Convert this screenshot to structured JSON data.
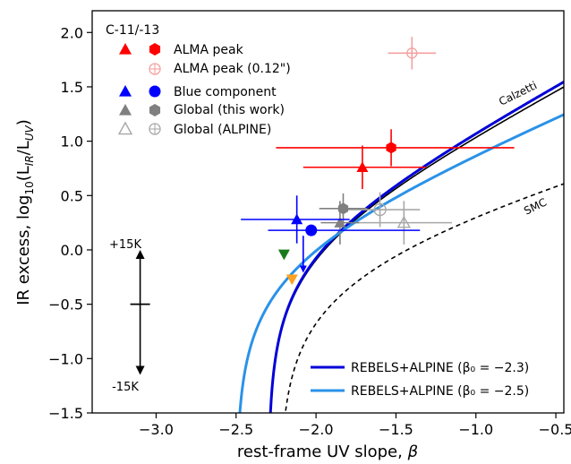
{
  "chart_data": {
    "type": "scatter",
    "xlabel_text": "rest-frame UV slope, ",
    "xlabel_sym": "β",
    "ylabel_pre": "IR excess, log",
    "ylabel_sub1": "10",
    "ylabel_mid1": "(L",
    "ylabel_sub2": "IR",
    "ylabel_mid2": "/L",
    "ylabel_sub3": "UV",
    "ylabel_post": ")",
    "xlim": [
      -3.4,
      -0.45
    ],
    "ylim": [
      -1.5,
      2.2
    ],
    "xticks": [
      -3.0,
      -2.5,
      -2.0,
      -1.5,
      -1.0,
      -0.5
    ],
    "xtick_labels": [
      "−3.0",
      "−2.5",
      "−2.0",
      "−1.5",
      "−1.0",
      "−0.5"
    ],
    "yticks": [
      -1.5,
      -1.0,
      -0.5,
      0.0,
      0.5,
      1.0,
      1.5,
      2.0
    ],
    "ytick_labels": [
      "−1.5",
      "−1.0",
      "−0.5",
      "0.0",
      "0.5",
      "1.0",
      "1.5",
      "2.0"
    ],
    "legend_title": "C-11/-13",
    "legend": [
      {
        "label": "ALMA peak",
        "color": "#ff0000",
        "style": "filled"
      },
      {
        "label": "ALMA peak (0.12\")",
        "color": "#ff0000",
        "style": "faded-open"
      },
      {
        "label": "Blue component",
        "color": "#0000ff",
        "style": "filled"
      },
      {
        "label": "Global (this work)",
        "color": "#808080",
        "style": "filled"
      },
      {
        "label": "Global (ALPINE)",
        "color": "#a0a0a0",
        "style": "open"
      }
    ],
    "legend2": [
      {
        "label": "REBELS+ALPINE (β₀ = −2.3)",
        "color": "#0000d8"
      },
      {
        "label": "REBELS+ALPINE (β₀ = −2.5)",
        "color": "#2a92e8"
      }
    ],
    "curve_labels": {
      "calzetti": "Calzetti",
      "smc": "SMC"
    },
    "arrow_labels": {
      "top": "+15K",
      "bottom": "-15K"
    },
    "arrow_anchor": {
      "x": -3.1,
      "y": -0.5,
      "y_top": 0.0,
      "y_bottom": -1.15
    },
    "curves": [
      {
        "id": "calzetti",
        "color": "#000000",
        "width": 1.6,
        "dash": "",
        "A": 1.99,
        "b0": -2.3,
        "c": 1.1
      },
      {
        "id": "smc",
        "color": "#000000",
        "width": 1.6,
        "dash": "5,4",
        "A": 1.1,
        "b0": -2.23,
        "c": 0.8
      },
      {
        "id": "rebels-23",
        "color": "#0000d8",
        "width": 3,
        "dash": "",
        "A": 2.05,
        "b0": -2.3,
        "c": 1.1
      },
      {
        "id": "rebels-25",
        "color": "#2a92e8",
        "width": 3,
        "dash": "",
        "A": 1.6,
        "b0": -2.5,
        "c": 0.9
      }
    ],
    "points": [
      {
        "name": "global-alpine-circle",
        "x": -1.6,
        "y": 0.37,
        "xerr": [
          0.25,
          0.25
        ],
        "yerr": [
          0.16,
          0.16
        ],
        "marker": "circle-open",
        "color": "#a8a8a8"
      },
      {
        "name": "global-alpine-triangle",
        "x": -1.45,
        "y": 0.25,
        "xerr": [
          0.3,
          0.3
        ],
        "yerr": [
          0.2,
          0.2
        ],
        "marker": "triangle-open",
        "color": "#a8a8a8"
      },
      {
        "name": "alma-peak-012",
        "x": -1.4,
        "y": 1.81,
        "xerr": [
          0.15,
          0.15
        ],
        "yerr": [
          0.15,
          0.15
        ],
        "marker": "circle-cross",
        "color": "#f5a0a0"
      },
      {
        "name": "global-this-work-hexagon",
        "x": -1.83,
        "y": 0.38,
        "xerr": [
          0.15,
          0.15
        ],
        "yerr": [
          0.14,
          0.14
        ],
        "marker": "hexagon",
        "color": "#808080"
      },
      {
        "name": "global-this-work-triangle",
        "x": -1.85,
        "y": 0.25,
        "xerr": [
          0.12,
          0.12
        ],
        "yerr": [
          0.2,
          0.2
        ],
        "marker": "triangle",
        "color": "#808080"
      },
      {
        "name": "blue-component-triangle",
        "x": -2.12,
        "y": 0.28,
        "xerr": [
          0.35,
          0.33
        ],
        "yerr": [
          0.22,
          0.22
        ],
        "marker": "triangle",
        "color": "#0000ff"
      },
      {
        "name": "blue-component-circle",
        "x": -2.03,
        "y": 0.18,
        "xerr": [
          0.27,
          0.68
        ],
        "yerr": [
          0.0,
          0.0
        ],
        "marker": "circle",
        "color": "#0000ff"
      },
      {
        "name": "alma-peak-triangle",
        "x": -1.71,
        "y": 0.76,
        "xerr": [
          0.37,
          0.4
        ],
        "yerr": [
          0.2,
          0.2
        ],
        "marker": "triangle",
        "color": "#ff0000"
      },
      {
        "name": "alma-peak-hexagon",
        "x": -1.53,
        "y": 0.94,
        "xerr": [
          0.72,
          0.77
        ],
        "yerr": [
          0.17,
          0.17
        ],
        "marker": "hexagon",
        "color": "#ff0000"
      },
      {
        "name": "green-down-triangle",
        "x": -2.2,
        "y": -0.04,
        "xerr": [
          0,
          0
        ],
        "yerr": [
          0,
          0
        ],
        "marker": "triangle-down",
        "color": "#1a7a1a"
      },
      {
        "name": "orange-down-triangle",
        "x": -2.15,
        "y": -0.27,
        "xerr": [
          0,
          0
        ],
        "yerr": [
          0,
          0
        ],
        "marker": "triangle-down",
        "color": "#ffa020"
      }
    ],
    "upper_limit_arrow": {
      "x": -2.08,
      "y_from": 0.13,
      "y_to": -0.21,
      "color": "#0000ff"
    },
    "grid": false
  }
}
